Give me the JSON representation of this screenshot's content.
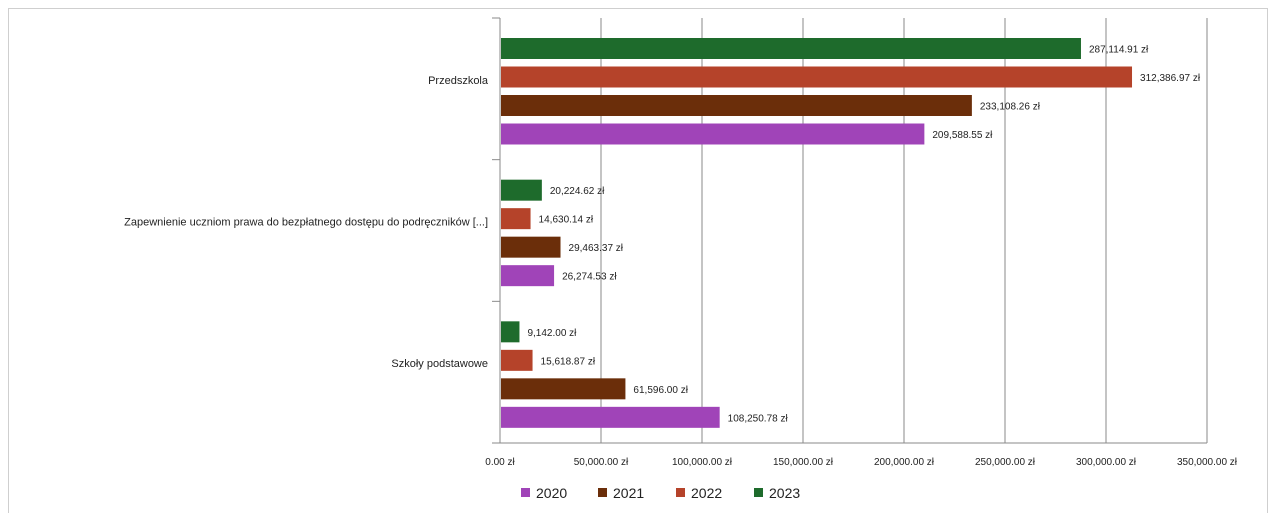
{
  "chart_data": {
    "type": "bar",
    "orientation": "horizontal",
    "categories": [
      "Przedszkola",
      "Zapewnienie uczniom prawa do bezpłatnego dostępu do podręczników [...]",
      "Szkoły podstawowe"
    ],
    "series": [
      {
        "name": "2023",
        "color": "#1e6b2c",
        "values": [
          287114.91,
          20224.62,
          9142.0
        ],
        "labels": [
          "287,114.91 zł",
          "20,224.62 zł",
          "9,142.00 zł"
        ]
      },
      {
        "name": "2022",
        "color": "#b5432a",
        "values": [
          312386.97,
          14630.14,
          15618.87
        ],
        "labels": [
          "312,386.97 zł",
          "14,630.14 zł",
          "15,618.87 zł"
        ]
      },
      {
        "name": "2021",
        "color": "#6b2e0a",
        "values": [
          233108.26,
          29463.37,
          61596.0
        ],
        "labels": [
          "233,108.26 zł",
          "29,463.37 zł",
          "61,596.00 zł"
        ]
      },
      {
        "name": "2020",
        "color": "#a044b8",
        "values": [
          209588.55,
          26274.53,
          108250.78
        ],
        "labels": [
          "209,588.55 zł",
          "26,274.53 zł",
          "108,250.78 zł"
        ]
      }
    ],
    "xlim": [
      0,
      350000
    ],
    "xticks": [
      0,
      50000,
      100000,
      150000,
      200000,
      250000,
      300000,
      350000
    ],
    "xtick_labels": [
      "0.00 zł",
      "50,000.00 zł",
      "100,000.00 zł",
      "150,000.00 zł",
      "200,000.00 zł",
      "250,000.00 zł",
      "300,000.00 zł",
      "350,000.00 zł"
    ],
    "grid": true,
    "legend": {
      "position": "bottom",
      "order": [
        "2020",
        "2021",
        "2022",
        "2023"
      ]
    },
    "title": "",
    "xlabel": "",
    "ylabel": ""
  }
}
